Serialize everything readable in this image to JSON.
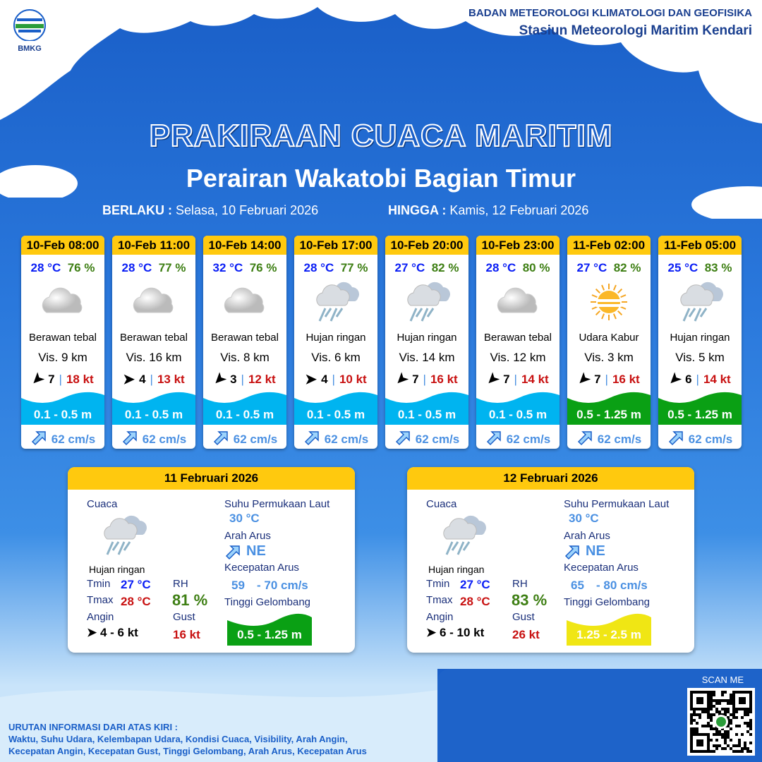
{
  "header": {
    "logo_text": "BMKG",
    "org": "BADAN METEOROLOGI KLIMATOLOGI DAN GEOFISIKA",
    "station": "Stasiun Meteorologi Maritim Kendari"
  },
  "title": "PRAKIRAAN CUACA MARITIM",
  "subtitle": "Perairan Wakatobi Bagian Timur",
  "validity": {
    "from_label": "BERLAKU :",
    "from": "Selasa, 10 Februari 2026",
    "to_label": "HINGGA :",
    "to": "Kamis, 12 Februari 2026"
  },
  "colors": {
    "wave_low": "#00b4f0",
    "wave_mid": "#0aa014",
    "wave_high": "#f0e614",
    "header": "#ffc90e"
  },
  "forecasts": [
    {
      "time": "10-Feb 08:00",
      "temp": "28 °C",
      "rh": "76 %",
      "icon": "cloud-icon",
      "cond": "Berawan tebal",
      "vis": "Vis.  9 km",
      "wind_dir_deg": 225,
      "wind": "7",
      "gust": "18 kt",
      "wave": "0.1 - 0.5 m",
      "wave_color": "#00b4f0",
      "current": "62 cm/s"
    },
    {
      "time": "10-Feb 11:00",
      "temp": "28 °C",
      "rh": "77 %",
      "icon": "cloud-icon",
      "cond": "Berawan tebal",
      "vis": "Vis.  16 km",
      "wind_dir_deg": 90,
      "wind": "4",
      "gust": "13 kt",
      "wave": "0.1 - 0.5 m",
      "wave_color": "#00b4f0",
      "current": "62 cm/s"
    },
    {
      "time": "10-Feb 14:00",
      "temp": "32 °C",
      "rh": "76 %",
      "icon": "cloud-icon",
      "cond": "Berawan tebal",
      "vis": "Vis.  8 km",
      "wind_dir_deg": 225,
      "wind": "3",
      "gust": "12 kt",
      "wave": "0.1 - 0.5 m",
      "wave_color": "#00b4f0",
      "current": "62 cm/s"
    },
    {
      "time": "10-Feb 17:00",
      "temp": "28 °C",
      "rh": "77 %",
      "icon": "rain-icon",
      "cond": "Hujan ringan",
      "vis": "Vis.  6 km",
      "wind_dir_deg": 90,
      "wind": "4",
      "gust": "10 kt",
      "wave": "0.1 - 0.5 m",
      "wave_color": "#00b4f0",
      "current": "62 cm/s"
    },
    {
      "time": "10-Feb 20:00",
      "temp": "27 °C",
      "rh": "82 %",
      "icon": "rain-icon",
      "cond": "Hujan ringan",
      "vis": "Vis.  14 km",
      "wind_dir_deg": 225,
      "wind": "7",
      "gust": "16 kt",
      "wave": "0.1 - 0.5 m",
      "wave_color": "#00b4f0",
      "current": "62 cm/s"
    },
    {
      "time": "10-Feb 23:00",
      "temp": "28 °C",
      "rh": "80 %",
      "icon": "cloud-icon",
      "cond": "Berawan tebal",
      "vis": "Vis.  12 km",
      "wind_dir_deg": 225,
      "wind": "7",
      "gust": "14 kt",
      "wave": "0.1 - 0.5 m",
      "wave_color": "#00b4f0",
      "current": "62 cm/s"
    },
    {
      "time": "11-Feb 02:00",
      "temp": "27 °C",
      "rh": "82 %",
      "icon": "haze-icon",
      "cond": "Udara Kabur",
      "vis": "Vis.  3 km",
      "wind_dir_deg": 225,
      "wind": "7",
      "gust": "16 kt",
      "wave": "0.5 - 1.25 m",
      "wave_color": "#0aa014",
      "current": "62 cm/s"
    },
    {
      "time": "11-Feb 05:00",
      "temp": "25 °C",
      "rh": "83 %",
      "icon": "rain-icon",
      "cond": "Hujan ringan",
      "vis": "Vis.  5 km",
      "wind_dir_deg": 225,
      "wind": "6",
      "gust": "14 kt",
      "wave": "0.5 - 1.25 m",
      "wave_color": "#0aa014",
      "current": "62 cm/s"
    }
  ],
  "labels": {
    "cuaca": "Cuaca",
    "tmin": "Tmin",
    "tmax": "Tmax",
    "angin": "Angin",
    "rh": "RH",
    "gust": "Gust",
    "sst": "Suhu Permukaan Laut",
    "arah": "Arah Arus",
    "kecepatan": "Kecepatan Arus",
    "tinggi": "Tinggi Gelombang"
  },
  "daily": [
    {
      "date": "11 Februari 2026",
      "cond": "Hujan ringan",
      "tmin": "27 °C",
      "tmax": "28 °C",
      "rh": "81 %",
      "wind": "4  - 6 kt",
      "gust": "16 kt",
      "sst": "30 °C",
      "dir": "NE",
      "speed_min": "59",
      "speed_max": "- 70 cm/s",
      "wave": "0.5 - 1.25 m",
      "wave_color": "#0aa014",
      "wave_text": "#ffffff"
    },
    {
      "date": "12 Februari 2026",
      "cond": "Hujan ringan",
      "tmin": "27 °C",
      "tmax": "28 °C",
      "rh": "83 %",
      "wind": "6  - 10 kt",
      "gust": "26 kt",
      "sst": "30 °C",
      "dir": "NE",
      "speed_min": "65",
      "speed_max": "- 80 cm/s",
      "wave": "1.25 - 2.5 m",
      "wave_color": "#f0e614",
      "wave_text": "#ffffff"
    }
  ],
  "footer": {
    "scan": "SCAN ME",
    "legend_title": "URUTAN INFORMASI DARI ATAS KIRI :",
    "legend_1": "Waktu, Suhu Udara, Kelembapan Udara, Kondisi Cuaca, Visibility, Arah Angin,",
    "legend_2": "Kecepatan Angin, Kecepatan Gust, Tinggi Gelombang, Arah Arus, Kecepatan Arus"
  }
}
